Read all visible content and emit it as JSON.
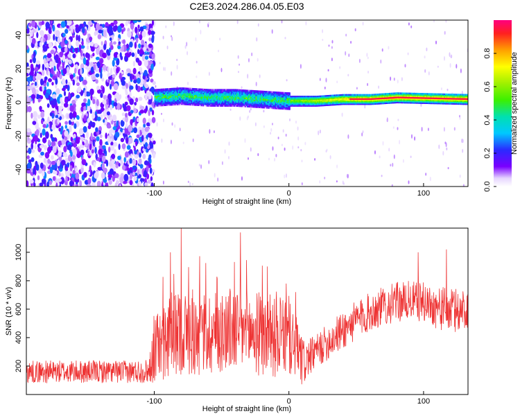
{
  "title": "C2E3.2024.286.04.05.E03",
  "chart_data": [
    {
      "type": "heatmap",
      "xlabel": "Height of straight line (km)",
      "ylabel": "Frequency (Hz)",
      "xlim": [
        -195,
        133
      ],
      "ylim": [
        -50,
        49
      ],
      "x_tick_labels": [
        "-100",
        "0",
        "100"
      ],
      "y_tick_labels": [
        "-40",
        "-20",
        "0",
        "20",
        "40"
      ],
      "colorbar": {
        "label": "Normalized spectral amplitude",
        "range": [
          0,
          1
        ],
        "tick_labels": [
          "0.0",
          "0.2",
          "0.4",
          "0.6",
          "0.8"
        ]
      },
      "features": [
        {
          "x_range": [
            -195,
            -100
          ],
          "description_key": "noise",
          "max_amplitude": 0.25
        },
        {
          "x_range": [
            -100,
            133
          ],
          "center_frequency": [
            3,
            4,
            3,
            3,
            2,
            1,
            1,
            2,
            2,
            3,
            2
          ],
          "x": [
            -100,
            -80,
            -60,
            -40,
            -20,
            0,
            20,
            40,
            60,
            80,
            133
          ],
          "max_amplitude": 0.95
        }
      ]
    },
    {
      "type": "line",
      "xlabel": "Height of straight line (km)",
      "ylabel": "SNR (10 * v/v)",
      "xlim": [
        -195,
        133
      ],
      "ylim": [
        0,
        1170
      ],
      "x_tick_labels": [
        "-100",
        "0",
        "100"
      ],
      "y_tick_labels": [
        "200",
        "400",
        "600",
        "800",
        "1000"
      ],
      "series": [
        {
          "color": "#ee3333",
          "x": [
            -195,
            -180,
            -160,
            -140,
            -120,
            -104,
            -100,
            -90,
            -80,
            -70,
            -60,
            -50,
            -40,
            -30,
            -20,
            -10,
            0,
            5,
            10,
            15,
            20,
            30,
            40,
            50,
            60,
            70,
            80,
            90,
            100,
            110,
            120,
            133
          ],
          "y": [
            160,
            160,
            160,
            160,
            160,
            165,
            330,
            390,
            440,
            420,
            430,
            450,
            460,
            440,
            420,
            400,
            390,
            350,
            220,
            260,
            300,
            380,
            450,
            520,
            580,
            620,
            650,
            660,
            650,
            610,
            590,
            600
          ],
          "spread": [
            80,
            80,
            80,
            80,
            80,
            85,
            250,
            280,
            300,
            300,
            300,
            300,
            310,
            300,
            300,
            280,
            260,
            240,
            180,
            130,
            120,
            130,
            140,
            140,
            140,
            140,
            140,
            140,
            140,
            150,
            160,
            160
          ],
          "spikes": [
            {
              "x": -88,
              "y": 1000
            },
            {
              "x": -80,
              "y": 1170
            },
            {
              "x": -36,
              "y": 1140
            },
            {
              "x": -16,
              "y": 900
            },
            {
              "x": -2,
              "y": 780
            },
            {
              "x": 96,
              "y": 1000
            },
            {
              "x": 117,
              "y": 1020
            }
          ]
        }
      ]
    }
  ]
}
